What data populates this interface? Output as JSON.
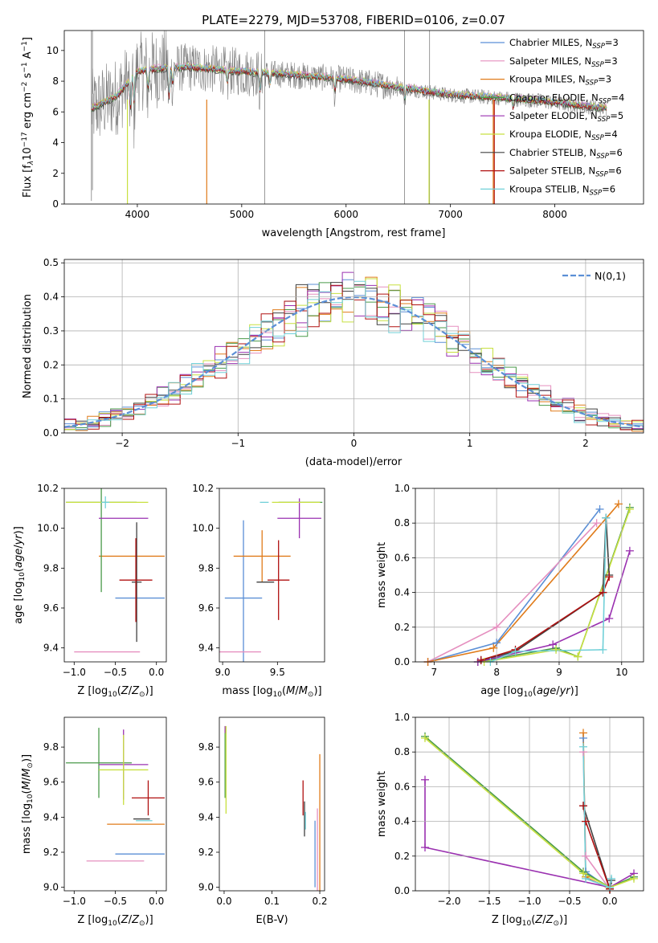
{
  "colors": {
    "chabrier_miles": "#5b8fd6",
    "salpeter_miles": "#e58fbf",
    "kroupa_miles": "#e07b1a",
    "chabrier_elodie": "#4a9a4a",
    "salpeter_elodie": "#9a30b0",
    "kroupa_elodie": "#c8e040",
    "chabrier_stelib": "#404040",
    "salpeter_stelib": "#b01010",
    "kroupa_stelib": "#70d0d8",
    "data": "#808080",
    "normal": "#5b8fd6"
  },
  "chart_data": [
    {
      "type": "line",
      "id": "spectrum",
      "title": "PLATE=2279, MJD=53708, FIBERID=0106, z=0.07",
      "xlabel": "wavelength [Angstrom, rest frame]",
      "ylabel": "Flux [f$_λ$10$^{-17}$ erg cm$^{-2}$ s$^{-1}$ A$^{-1}$]",
      "xlim": [
        3300,
        8850
      ],
      "ylim": [
        0,
        11.3
      ],
      "xticks": [
        4000,
        5000,
        6000,
        7000,
        8000
      ],
      "yticks": [
        0,
        2,
        4,
        6,
        8,
        10
      ],
      "legend_position": "top-right",
      "legend": [
        {
          "key": "chabrier_miles",
          "label": "Chabrier MILES, N_SSP=3",
          "pre": "Chabrier MILES, N",
          "sub": "SSP",
          "post": "=3"
        },
        {
          "key": "salpeter_miles",
          "label": "Salpeter MILES, N_SSP=3",
          "pre": "Salpeter MILES, N",
          "sub": "SSP",
          "post": "=3"
        },
        {
          "key": "kroupa_miles",
          "label": "Kroupa MILES, N_SSP=3",
          "pre": "Kroupa MILES, N",
          "sub": "SSP",
          "post": "=3"
        },
        {
          "key": "chabrier_elodie",
          "label": "Chabrier ELODIE, N_SSP=4",
          "pre": "Chabrier ELODIE, N",
          "sub": "SSP",
          "post": "=4"
        },
        {
          "key": "salpeter_elodie",
          "label": "Salpeter ELODIE, N_SSP=5",
          "pre": "Salpeter ELODIE, N",
          "sub": "SSP",
          "post": "=5"
        },
        {
          "key": "kroupa_elodie",
          "label": "Kroupa ELODIE, N_SSP=4",
          "pre": "Kroupa ELODIE, N",
          "sub": "SSP",
          "post": "=4"
        },
        {
          "key": "chabrier_stelib",
          "label": "Chabrier STELIB, N_SSP=6",
          "pre": "Chabrier STELIB, N",
          "sub": "SSP",
          "post": "=6"
        },
        {
          "key": "salpeter_stelib",
          "label": "Salpeter STELIB, N_SSP=6",
          "pre": "Salpeter STELIB, N",
          "sub": "SSP",
          "post": "=6"
        },
        {
          "key": "kroupa_stelib",
          "label": "Kroupa STELIB, N_SSP=6",
          "pre": "Kroupa STELIB, N",
          "sub": "SSP",
          "post": "=6"
        }
      ],
      "continuum": [
        [
          3560,
          6.2
        ],
        [
          3800,
          7.0
        ],
        [
          4000,
          8.6
        ],
        [
          4200,
          8.8
        ],
        [
          4500,
          8.9
        ],
        [
          5000,
          8.6
        ],
        [
          5500,
          8.4
        ],
        [
          6000,
          8.1
        ],
        [
          6500,
          7.6
        ],
        [
          7000,
          7.1
        ],
        [
          7500,
          6.9
        ],
        [
          8000,
          6.6
        ],
        [
          8500,
          6.2
        ]
      ]
    },
    {
      "type": "line",
      "id": "residuals",
      "xlabel": "(data-model)/error",
      "ylabel": "Normed distribution",
      "xlim": [
        -2.5,
        2.5
      ],
      "ylim": [
        0,
        0.51
      ],
      "xticks": [
        -2,
        -1,
        0,
        1,
        2
      ],
      "yticks": [
        0.0,
        0.1,
        0.2,
        0.3,
        0.4,
        0.5
      ],
      "grid": true,
      "legend_position": "top-right",
      "legend_label": "N(0,1)",
      "hist_bin_width": 0.1
    },
    {
      "type": "scatter",
      "id": "age_vs_Z",
      "xlabel": "Z [log10(Z/Z_sun)]",
      "ylabel": "age [log10(age/yr)]",
      "xlim": [
        -1.12,
        0.12
      ],
      "ylim": [
        9.33,
        10.2
      ],
      "xticks": [
        -1.0,
        -0.5,
        0.0
      ],
      "yticks": [
        9.4,
        9.6,
        9.8,
        10.0,
        10.2
      ],
      "points": [
        {
          "key": "chabrier_miles",
          "x": -0.2,
          "y": 9.65,
          "xerr": 0.3,
          "yerr": 0.0
        },
        {
          "key": "salpeter_miles",
          "x": -0.6,
          "y": 9.38,
          "xerr": 0.4,
          "yerr": 0.0
        },
        {
          "key": "kroupa_miles",
          "x": -0.3,
          "y": 9.86,
          "xerr": 0.4,
          "yerr": 0.0
        },
        {
          "key": "chabrier_elodie",
          "x": -0.67,
          "y": 10.13,
          "xerr": 0.43,
          "yerr": 0.45
        },
        {
          "key": "salpeter_elodie",
          "x": -0.4,
          "y": 10.05,
          "xerr": 0.3,
          "yerr": 0.0
        },
        {
          "key": "kroupa_elodie",
          "x": -0.6,
          "y": 10.13,
          "xerr": 0.5,
          "yerr": 0.0
        },
        {
          "key": "chabrier_stelib",
          "x": -0.24,
          "y": 9.73,
          "xerr": 0.06,
          "yerr": 0.3
        },
        {
          "key": "salpeter_stelib",
          "x": -0.25,
          "y": 9.74,
          "xerr": 0.2,
          "yerr": 0.21
        },
        {
          "key": "kroupa_stelib",
          "x": -0.62,
          "y": 10.13,
          "xerr": 0.05,
          "yerr": 0.03
        }
      ]
    },
    {
      "type": "scatter",
      "id": "age_vs_mass",
      "xlabel": "mass [log10(M/M_sun)]",
      "ylabel": "",
      "xlim": [
        8.97,
        9.93
      ],
      "ylim": [
        9.33,
        10.2
      ],
      "xticks": [
        9.0,
        9.5
      ],
      "yticks": [
        9.4,
        9.6,
        9.8,
        10.0,
        10.2
      ],
      "points": [
        {
          "key": "chabrier_miles",
          "x": 9.19,
          "y": 9.65,
          "xerr": 0.17,
          "yerr": 0.39
        },
        {
          "key": "salpeter_miles",
          "x": 9.15,
          "y": 9.38,
          "xerr": 0.2,
          "yerr": 0.0
        },
        {
          "key": "kroupa_miles",
          "x": 9.36,
          "y": 9.86,
          "xerr": 0.26,
          "yerr": 0.13
        },
        {
          "key": "chabrier_elodie",
          "x": 9.71,
          "y": 10.13,
          "xerr": 0.2,
          "yerr": 0.0
        },
        {
          "key": "salpeter_elodie",
          "x": 9.7,
          "y": 10.05,
          "xerr": 0.2,
          "yerr": 0.1
        },
        {
          "key": "kroupa_elodie",
          "x": 9.67,
          "y": 10.13,
          "xerr": 0.22,
          "yerr": 0.0
        },
        {
          "key": "chabrier_stelib",
          "x": 9.39,
          "y": 9.73,
          "xerr": 0.08,
          "yerr": 0.0
        },
        {
          "key": "salpeter_stelib",
          "x": 9.51,
          "y": 9.74,
          "xerr": 0.1,
          "yerr": 0.2
        },
        {
          "key": "kroupa_stelib",
          "x": 9.38,
          "y": 10.13,
          "xerr": 0.04,
          "yerr": 0.0
        }
      ]
    },
    {
      "type": "line",
      "id": "mass_weight_vs_age",
      "xlabel": "age [log10(age/yr)]",
      "ylabel": "mass weight",
      "xlim": [
        6.7,
        10.35
      ],
      "ylim": [
        0,
        1.0
      ],
      "xticks": [
        7,
        8,
        9,
        10
      ],
      "yticks": [
        0.0,
        0.2,
        0.4,
        0.6,
        0.8,
        1.0
      ],
      "grid": true,
      "series": [
        {
          "key": "chabrier_miles",
          "points": [
            [
              6.9,
              0.0
            ],
            [
              8.0,
              0.11
            ],
            [
              9.65,
              0.88
            ]
          ]
        },
        {
          "key": "salpeter_miles",
          "points": [
            [
              6.9,
              0.0
            ],
            [
              8.0,
              0.2
            ],
            [
              9.6,
              0.8
            ]
          ]
        },
        {
          "key": "kroupa_miles",
          "points": [
            [
              6.9,
              0.0
            ],
            [
              7.95,
              0.08
            ],
            [
              9.95,
              0.91
            ]
          ]
        },
        {
          "key": "chabrier_elodie",
          "points": [
            [
              7.7,
              0.0
            ],
            [
              8.95,
              0.08
            ],
            [
              9.3,
              0.03
            ],
            [
              10.13,
              0.89
            ]
          ]
        },
        {
          "key": "salpeter_elodie",
          "points": [
            [
              7.7,
              0.0
            ],
            [
              8.9,
              0.1
            ],
            [
              9.8,
              0.25
            ],
            [
              10.13,
              0.64
            ]
          ]
        },
        {
          "key": "kroupa_elodie",
          "points": [
            [
              7.8,
              0.0
            ],
            [
              8.95,
              0.07
            ],
            [
              9.3,
              0.03
            ],
            [
              10.13,
              0.88
            ]
          ]
        },
        {
          "key": "chabrier_stelib",
          "points": [
            [
              7.75,
              0.01
            ],
            [
              8.3,
              0.06
            ],
            [
              9.7,
              0.4
            ],
            [
              9.75,
              0.83
            ],
            [
              9.8,
              0.5
            ]
          ]
        },
        {
          "key": "salpeter_stelib",
          "points": [
            [
              7.75,
              0.01
            ],
            [
              8.3,
              0.07
            ],
            [
              9.7,
              0.4
            ],
            [
              9.8,
              0.49
            ]
          ]
        },
        {
          "key": "kroupa_stelib",
          "points": [
            [
              7.9,
              0.0
            ],
            [
              8.3,
              0.06
            ],
            [
              9.7,
              0.07
            ],
            [
              9.75,
              0.83
            ]
          ]
        }
      ]
    },
    {
      "type": "scatter",
      "id": "mass_vs_Z",
      "xlabel": "Z [log10(Z/Z_sun)]",
      "ylabel": "mass [log10(M/M_sun)]",
      "xlim": [
        -1.12,
        0.12
      ],
      "ylim": [
        8.98,
        9.97
      ],
      "xticks": [
        -1.0,
        -0.5,
        0.0
      ],
      "yticks": [
        9.0,
        9.2,
        9.4,
        9.6,
        9.8
      ],
      "points": [
        {
          "key": "chabrier_miles",
          "x": -0.2,
          "y": 9.19,
          "xerr": 0.3,
          "yerr": 0.0
        },
        {
          "key": "salpeter_miles",
          "x": -0.5,
          "y": 9.15,
          "xerr": 0.35,
          "yerr": 0.0
        },
        {
          "key": "kroupa_miles",
          "x": -0.25,
          "y": 9.36,
          "xerr": 0.35,
          "yerr": 0.0
        },
        {
          "key": "chabrier_elodie",
          "x": -0.7,
          "y": 9.71,
          "xerr": 0.4,
          "yerr": 0.2
        },
        {
          "key": "salpeter_elodie",
          "x": -0.4,
          "y": 9.7,
          "xerr": 0.3,
          "yerr": 0.2
        },
        {
          "key": "kroupa_elodie",
          "x": -0.4,
          "y": 9.67,
          "xerr": 0.3,
          "yerr": 0.2
        },
        {
          "key": "chabrier_stelib",
          "x": -0.18,
          "y": 9.39,
          "xerr": 0.1,
          "yerr": 0.0
        },
        {
          "key": "salpeter_stelib",
          "x": -0.1,
          "y": 9.51,
          "xerr": 0.2,
          "yerr": 0.1
        },
        {
          "key": "kroupa_stelib",
          "x": -0.15,
          "y": 9.38,
          "xerr": 0.1,
          "yerr": 0.0
        }
      ]
    },
    {
      "type": "scatter",
      "id": "mass_vs_EBV",
      "xlabel": "E(B-V)",
      "ylabel": "",
      "xlim": [
        -0.01,
        0.21
      ],
      "ylim": [
        8.98,
        9.97
      ],
      "xticks": [
        0.0,
        0.1,
        0.2
      ],
      "yticks": [
        9.0,
        9.2,
        9.4,
        9.6,
        9.8
      ],
      "points": [
        {
          "key": "chabrier_miles",
          "x": 0.19,
          "y": 9.19,
          "xerr": 0.0,
          "yerr": 0.19
        },
        {
          "key": "salpeter_miles",
          "x": 0.195,
          "y": 9.2,
          "xerr": 0.0,
          "yerr": 0.25
        },
        {
          "key": "kroupa_miles",
          "x": 0.2,
          "y": 9.36,
          "xerr": 0.0,
          "yerr": 0.4
        },
        {
          "key": "chabrier_elodie",
          "x": 0.002,
          "y": 9.71,
          "xerr": 0.0,
          "yerr": 0.2
        },
        {
          "key": "salpeter_elodie",
          "x": 0.002,
          "y": 9.9,
          "xerr": 0.0,
          "yerr": 0.02
        },
        {
          "key": "kroupa_elodie",
          "x": 0.004,
          "y": 9.67,
          "xerr": 0.0,
          "yerr": 0.25
        },
        {
          "key": "chabrier_stelib",
          "x": 0.168,
          "y": 9.39,
          "xerr": 0.0,
          "yerr": 0.1
        },
        {
          "key": "salpeter_stelib",
          "x": 0.165,
          "y": 9.51,
          "xerr": 0.0,
          "yerr": 0.1
        },
        {
          "key": "kroupa_stelib",
          "x": 0.17,
          "y": 9.38,
          "xerr": 0.0,
          "yerr": 0.05
        }
      ]
    },
    {
      "type": "line",
      "id": "mass_weight_vs_Z",
      "xlabel": "Z [log10(Z/Z_sun)]",
      "ylabel": "mass weight",
      "xlim": [
        -2.42,
        0.42
      ],
      "ylim": [
        0,
        1.0
      ],
      "xticks": [
        -2.0,
        -1.5,
        -1.0,
        -0.5,
        0.0
      ],
      "yticks": [
        0.0,
        0.2,
        0.4,
        0.6,
        0.8,
        1.0
      ],
      "grid": true,
      "series": [
        {
          "key": "chabrier_miles",
          "points": [
            [
              -0.33,
              0.88
            ],
            [
              -0.3,
              0.11
            ],
            [
              0.0,
              0.01
            ]
          ]
        },
        {
          "key": "salpeter_miles",
          "points": [
            [
              -0.33,
              0.8
            ],
            [
              -0.3,
              0.2
            ],
            [
              0.0,
              0.01
            ]
          ]
        },
        {
          "key": "kroupa_miles",
          "points": [
            [
              -0.33,
              0.91
            ],
            [
              -0.3,
              0.08
            ],
            [
              0.0,
              0.01
            ]
          ]
        },
        {
          "key": "chabrier_elodie",
          "points": [
            [
              -2.3,
              0.89
            ],
            [
              -0.33,
              0.11
            ],
            [
              0.0,
              0.02
            ],
            [
              0.3,
              0.08
            ]
          ]
        },
        {
          "key": "salpeter_elodie",
          "points": [
            [
              -2.3,
              0.64
            ],
            [
              -2.3,
              0.25
            ],
            [
              0.0,
              0.02
            ],
            [
              0.3,
              0.1
            ]
          ]
        },
        {
          "key": "kroupa_elodie",
          "points": [
            [
              -2.3,
              0.88
            ],
            [
              -0.33,
              0.1
            ],
            [
              0.0,
              0.02
            ],
            [
              0.3,
              0.07
            ]
          ]
        },
        {
          "key": "chabrier_stelib",
          "points": [
            [
              -0.33,
              0.49
            ],
            [
              0.0,
              0.01
            ],
            [
              0.02,
              0.06
            ]
          ]
        },
        {
          "key": "salpeter_stelib",
          "points": [
            [
              -0.33,
              0.49
            ],
            [
              -0.3,
              0.4
            ],
            [
              0.0,
              0.01
            ]
          ]
        },
        {
          "key": "kroupa_stelib",
          "points": [
            [
              -0.33,
              0.83
            ],
            [
              -0.3,
              0.07
            ],
            [
              0.0,
              0.02
            ],
            [
              0.02,
              0.07
            ]
          ]
        }
      ]
    }
  ]
}
